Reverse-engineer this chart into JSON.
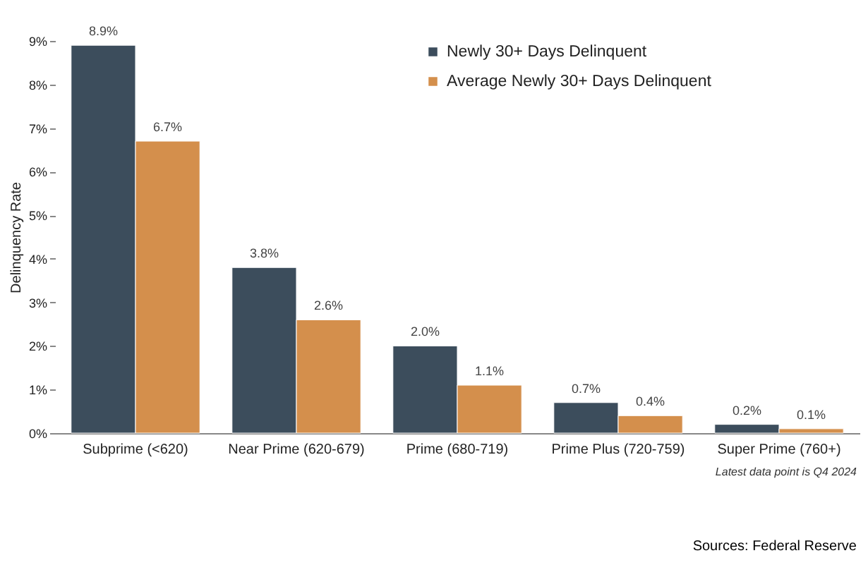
{
  "chart_data": {
    "type": "bar",
    "ylabel": "Delinquency Rate",
    "categories": [
      "Subprime (<620)",
      "Near Prime (620-679)",
      "Prime (680-719)",
      "Prime Plus (720-759)",
      "Super Prime (760+)"
    ],
    "series": [
      {
        "name": "Newly 30+ Days Delinquent",
        "color": "#3c4d5c",
        "values": [
          8.9,
          3.8,
          2.0,
          0.7,
          0.2
        ],
        "value_labels": [
          "8.9%",
          "3.8%",
          "2.0%",
          "0.7%",
          "0.2%"
        ]
      },
      {
        "name": "Average Newly 30+ Days Delinquent",
        "color": "#d48f4c",
        "values": [
          6.7,
          2.6,
          1.1,
          0.4,
          0.1
        ],
        "value_labels": [
          "6.7%",
          "2.6%",
          "1.1%",
          "0.4%",
          "0.1%"
        ]
      }
    ],
    "ylim": [
      0,
      9
    ],
    "yticks": [
      {
        "value": 0,
        "label": "0%"
      },
      {
        "value": 1,
        "label": "1%"
      },
      {
        "value": 2,
        "label": "2%"
      },
      {
        "value": 3,
        "label": "3%"
      },
      {
        "value": 4,
        "label": "4%"
      },
      {
        "value": 5,
        "label": "5%"
      },
      {
        "value": 6,
        "label": "6%"
      },
      {
        "value": 7,
        "label": "7%"
      },
      {
        "value": 8,
        "label": "8%"
      },
      {
        "value": 9,
        "label": "9%"
      }
    ],
    "grid": false,
    "legend": "top right",
    "annotations": [
      "Latest data point is Q4 2024",
      "Sources: Federal Reserve"
    ]
  }
}
